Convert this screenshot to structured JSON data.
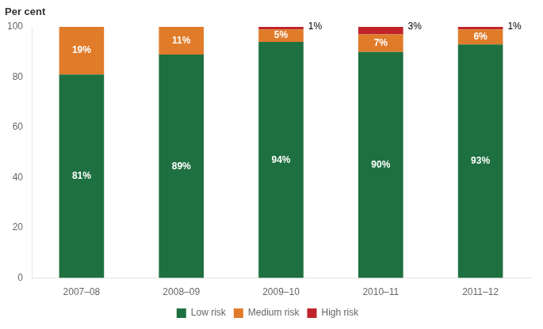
{
  "chart_data": {
    "type": "bar",
    "stacked": true,
    "ylabel": "Per cent",
    "categories": [
      "2007–08",
      "2008–09",
      "2009–10",
      "2010–11",
      "2011–12"
    ],
    "series": [
      {
        "name": "Low risk",
        "color": "#1e7040",
        "values": [
          81,
          89,
          94,
          90,
          93
        ],
        "value_labels": [
          "81%",
          "89%",
          "94%",
          "90%",
          "93%"
        ]
      },
      {
        "name": "Medium risk",
        "color": "#e07b2a",
        "values": [
          19,
          11,
          5,
          7,
          6
        ],
        "value_labels": [
          "19%",
          "11%",
          "5%",
          "7%",
          "6%"
        ]
      },
      {
        "name": "High risk",
        "color": "#c0242a",
        "values": [
          0,
          0,
          1,
          3,
          1
        ],
        "value_labels": [
          null,
          null,
          "1%",
          "3%",
          "1%"
        ]
      }
    ],
    "ylim": [
      0,
      100
    ],
    "yticks": [
      0,
      20,
      40,
      60,
      80,
      100
    ],
    "grid": false,
    "legend": "bottom",
    "data_labels": true
  }
}
